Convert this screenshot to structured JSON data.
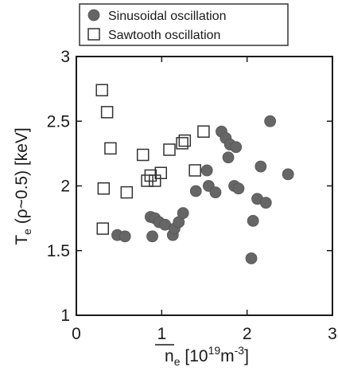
{
  "chart_data": {
    "type": "scatter",
    "xlabel": {
      "base": "n",
      "sub": "e",
      "unit_pre": " [10",
      "unit_sup1": "19",
      "unit_mid": "m",
      "unit_sup2": "-3",
      "unit_post": "]"
    },
    "ylabel": {
      "base": "T",
      "sub": "e",
      "rest": " (ρ~0.5) [keV]"
    },
    "xlim": [
      0,
      3
    ],
    "ylim": [
      1,
      3
    ],
    "x_ticks": [
      "0",
      "1",
      "2",
      "3"
    ],
    "y_ticks": [
      "1",
      "1.5",
      "2",
      "2.5",
      "3"
    ],
    "legend_position": "top-left (above plot)",
    "grid": false,
    "series": [
      {
        "name": "Sinusoidal oscillation",
        "marker": "filled-circle",
        "color": "#666666",
        "points": [
          [
            0.48,
            1.62
          ],
          [
            0.57,
            1.61
          ],
          [
            0.87,
            1.76
          ],
          [
            0.89,
            1.61
          ],
          [
            0.92,
            1.75
          ],
          [
            0.97,
            1.72
          ],
          [
            1.04,
            1.7
          ],
          [
            1.13,
            1.62
          ],
          [
            1.15,
            1.67
          ],
          [
            1.2,
            1.72
          ],
          [
            1.25,
            1.79
          ],
          [
            1.4,
            1.96
          ],
          [
            1.53,
            2.12
          ],
          [
            1.55,
            2.0
          ],
          [
            1.63,
            1.95
          ],
          [
            1.7,
            2.42
          ],
          [
            1.75,
            2.37
          ],
          [
            1.78,
            2.22
          ],
          [
            1.8,
            2.32
          ],
          [
            1.85,
            2.0
          ],
          [
            1.87,
            2.3
          ],
          [
            1.9,
            1.98
          ],
          [
            2.05,
            1.44
          ],
          [
            2.07,
            1.73
          ],
          [
            2.12,
            1.9
          ],
          [
            2.16,
            2.15
          ],
          [
            2.22,
            1.87
          ],
          [
            2.27,
            2.5
          ],
          [
            2.48,
            2.09
          ]
        ]
      },
      {
        "name": "Sawtooth oscillation",
        "marker": "open-square",
        "color": "#333333",
        "points": [
          [
            0.3,
            2.74
          ],
          [
            0.31,
            1.67
          ],
          [
            0.32,
            1.98
          ],
          [
            0.36,
            2.57
          ],
          [
            0.4,
            2.29
          ],
          [
            0.59,
            1.95
          ],
          [
            0.78,
            2.24
          ],
          [
            0.83,
            2.04
          ],
          [
            0.87,
            2.08
          ],
          [
            0.92,
            2.04
          ],
          [
            0.99,
            2.1
          ],
          [
            1.09,
            2.28
          ],
          [
            1.24,
            2.33
          ],
          [
            1.27,
            2.35
          ],
          [
            1.39,
            2.12
          ],
          [
            1.49,
            2.42
          ]
        ]
      }
    ]
  }
}
